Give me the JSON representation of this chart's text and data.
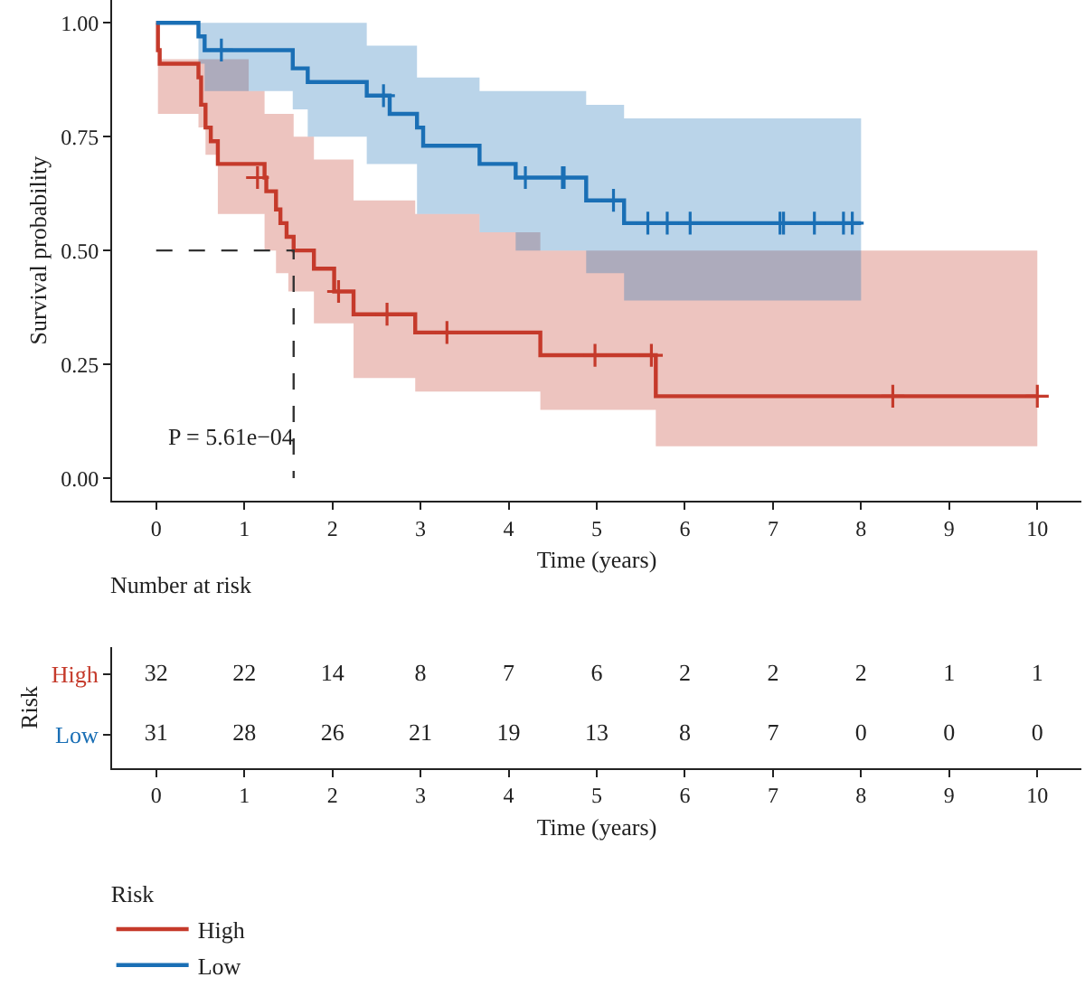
{
  "chart_data": [
    {
      "type": "step",
      "ylabel": "Survival probability",
      "xlabel": "Time (years)",
      "legend_title": "Risk",
      "legend": "bottom",
      "xlim": [
        -0.5,
        10.5
      ],
      "xticks": [
        0,
        1,
        2,
        3,
        4,
        5,
        6,
        7,
        8,
        9,
        10
      ],
      "ylim": [
        -0.05,
        1.05
      ],
      "yticks": [
        {
          "value": 0,
          "label": "0.00"
        },
        {
          "value": 0.25,
          "label": "0.25"
        },
        {
          "value": 0.5,
          "label": "0.50"
        },
        {
          "value": 0.75,
          "label": "0.75"
        },
        {
          "value": 1,
          "label": "1.00"
        }
      ],
      "annotations": [
        "P = 5.61e−04"
      ],
      "series": [
        {
          "name": "High",
          "type": "step",
          "marker": "none",
          "color": "#c53a2b",
          "x": [
            0,
            0.02,
            0.04,
            0.48,
            0.51,
            0.56,
            0.62,
            0.7,
            1.05,
            1.23,
            1.25,
            1.36,
            1.41,
            1.48,
            1.5,
            1.56,
            1.79,
            2.02,
            2.24,
            2.94,
            3.67,
            4.36,
            5.67,
            10
          ],
          "values": [
            1,
            0.94,
            0.91,
            0.88,
            0.82,
            0.77,
            0.74,
            0.69,
            0.69,
            0.66,
            0.63,
            0.59,
            0.56,
            0.53,
            0.53,
            0.5,
            0.46,
            0.41,
            0.36,
            0.32,
            0.32,
            0.27,
            0.18,
            0.18
          ],
          "lower": [
            1,
            0.8,
            0.8,
            0.77,
            0.77,
            0.71,
            0.71,
            0.58,
            0.58,
            0.5,
            0.5,
            0.45,
            0.45,
            0.45,
            0.41,
            0.41,
            0.34,
            0.34,
            0.22,
            0.19,
            0.19,
            0.15,
            0.07,
            0.07
          ],
          "upper": [
            1,
            0.94,
            0.92,
            0.92,
            0.92,
            0.92,
            0.92,
            0.92,
            0.85,
            0.8,
            0.8,
            0.8,
            0.8,
            0.8,
            0.8,
            0.75,
            0.7,
            0.7,
            0.61,
            0.58,
            0.54,
            0.5,
            0.5,
            0.5
          ]
        },
        {
          "name": "Low",
          "type": "step",
          "marker": "none",
          "color": "#1a6fb5",
          "x": [
            0,
            0.48,
            0.55,
            1.55,
            1.72,
            2.39,
            2.65,
            2.96,
            3.03,
            3.67,
            4.08,
            4.88,
            5.31,
            8.0
          ],
          "values": [
            1,
            0.97,
            0.94,
            0.9,
            0.87,
            0.84,
            0.8,
            0.77,
            0.73,
            0.69,
            0.66,
            0.61,
            0.56,
            0.56
          ],
          "lower": [
            1,
            0.91,
            0.85,
            0.81,
            0.75,
            0.69,
            0.69,
            0.58,
            0.58,
            0.54,
            0.5,
            0.45,
            0.39,
            0.39
          ],
          "upper": [
            1,
            1,
            1,
            1,
            1,
            0.95,
            0.95,
            0.88,
            0.88,
            0.85,
            0.85,
            0.82,
            0.79,
            0.79
          ]
        },
        {
          "type": "scatter",
          "marker": "cross",
          "color": "#c53a2b",
          "x": [
            1.15,
            2.07,
            2.62,
            3.3,
            4.98,
            5.62,
            8.36,
            10.0
          ],
          "values": [
            0.66,
            0.41,
            0.36,
            0.32,
            0.27,
            0.27,
            0.18,
            0.18
          ]
        },
        {
          "type": "scatter",
          "marker": "cross",
          "color": "#1a6fb5",
          "x": [
            0.74,
            2.58,
            4.19,
            4.61,
            4.63,
            5.19,
            5.58,
            5.8,
            6.06,
            7.08,
            7.12,
            7.47,
            7.8,
            7.9
          ],
          "values": [
            0.94,
            0.84,
            0.66,
            0.66,
            0.66,
            0.61,
            0.56,
            0.56,
            0.56,
            0.56,
            0.56,
            0.56,
            0.56,
            0.56
          ]
        },
        {
          "type": "line",
          "marker": "none",
          "color": "#333333",
          "line_style": "dashed",
          "x": [
            0,
            1.56,
            1.56
          ],
          "values": [
            0.5,
            0.5,
            0
          ]
        }
      ]
    },
    {
      "type": "heatmap",
      "title": "Number at risk",
      "xlabel": "Time (years)",
      "ylabel": "Risk",
      "data_labels": true,
      "categories": [
        "0",
        "1",
        "2",
        "3",
        "4",
        "5",
        "6",
        "7",
        "8",
        "9",
        "10"
      ],
      "y_categories": [
        "High",
        "Low"
      ],
      "colors": [
        "#c53a2b",
        "#1a6fb5"
      ],
      "cells": [
        [
          32,
          22,
          14,
          8,
          7,
          6,
          2,
          2,
          2,
          1,
          1
        ],
        [
          31,
          28,
          26,
          21,
          19,
          13,
          8,
          7,
          0,
          0,
          0
        ]
      ]
    }
  ]
}
